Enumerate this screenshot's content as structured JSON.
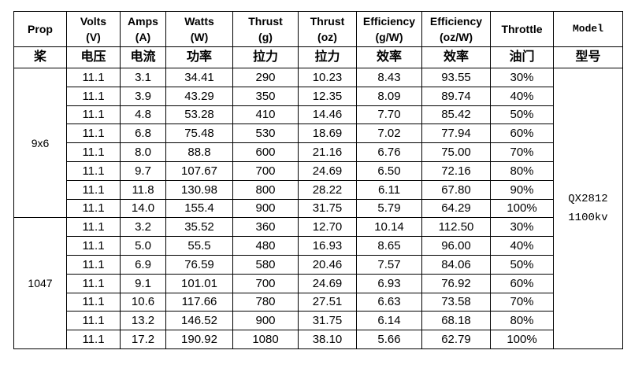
{
  "header": {
    "columns": [
      {
        "name": "Prop"
      },
      {
        "name": "Volts",
        "unit": "(V)"
      },
      {
        "name": "Amps",
        "unit": "(A)"
      },
      {
        "name": "Watts",
        "unit": "(W)"
      },
      {
        "name": "Thrust",
        "unit": "(g)"
      },
      {
        "name": "Thrust",
        "unit": "(oz)"
      },
      {
        "name": "Efficiency",
        "unit": "(g/W)"
      },
      {
        "name": "Efficiency",
        "unit": "(oz/W)"
      },
      {
        "name": "Throttle"
      },
      {
        "name": "Model"
      }
    ],
    "chinese": [
      "桨",
      "电压",
      "电流",
      "功率",
      "拉力",
      "拉力",
      "效率",
      "效率",
      "油门",
      "型号"
    ]
  },
  "groups": [
    {
      "prop": "9x6",
      "rows": [
        [
          "11.1",
          "3.1",
          "34.41",
          "290",
          "10.23",
          "8.43",
          "93.55",
          "30%"
        ],
        [
          "11.1",
          "3.9",
          "43.29",
          "350",
          "12.35",
          "8.09",
          "89.74",
          "40%"
        ],
        [
          "11.1",
          "4.8",
          "53.28",
          "410",
          "14.46",
          "7.70",
          "85.42",
          "50%"
        ],
        [
          "11.1",
          "6.8",
          "75.48",
          "530",
          "18.69",
          "7.02",
          "77.94",
          "60%"
        ],
        [
          "11.1",
          "8.0",
          "88.8",
          "600",
          "21.16",
          "6.76",
          "75.00",
          "70%"
        ],
        [
          "11.1",
          "9.7",
          "107.67",
          "700",
          "24.69",
          "6.50",
          "72.16",
          "80%"
        ],
        [
          "11.1",
          "11.8",
          "130.98",
          "800",
          "28.22",
          "6.11",
          "67.80",
          "90%"
        ],
        [
          "11.1",
          "14.0",
          "155.4",
          "900",
          "31.75",
          "5.79",
          "64.29",
          "100%"
        ]
      ]
    },
    {
      "prop": "1047",
      "rows": [
        [
          "11.1",
          "3.2",
          "35.52",
          "360",
          "12.70",
          "10.14",
          "112.50",
          "30%"
        ],
        [
          "11.1",
          "5.0",
          "55.5",
          "480",
          "16.93",
          "8.65",
          "96.00",
          "40%"
        ],
        [
          "11.1",
          "6.9",
          "76.59",
          "580",
          "20.46",
          "7.57",
          "84.06",
          "50%"
        ],
        [
          "11.1",
          "9.1",
          "101.01",
          "700",
          "24.69",
          "6.93",
          "76.92",
          "60%"
        ],
        [
          "11.1",
          "10.6",
          "117.66",
          "780",
          "27.51",
          "6.63",
          "73.58",
          "70%"
        ],
        [
          "11.1",
          "13.2",
          "146.52",
          "900",
          "31.75",
          "6.14",
          "68.18",
          "80%"
        ],
        [
          "11.1",
          "17.2",
          "190.92",
          "1080",
          "38.10",
          "5.66",
          "62.79",
          "100%"
        ]
      ]
    }
  ],
  "model": [
    "QX2812",
    "1100kv"
  ]
}
